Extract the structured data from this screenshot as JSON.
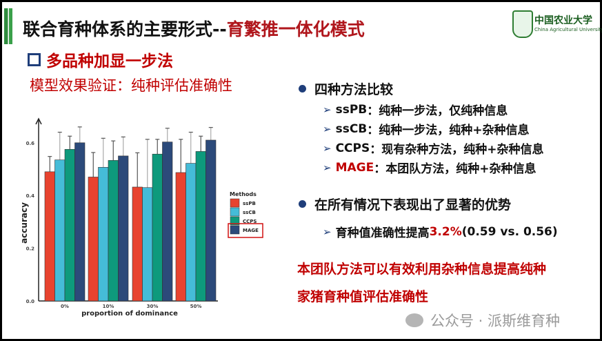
{
  "slide": {
    "title_main": "联合育种体系的主要形式--",
    "title_highlight": "育繁推一体化模式",
    "logo": {
      "cn": "中国农业大学",
      "en": "China Agricultural University"
    },
    "heading": "多品种加显一步法",
    "subtitle": "模型效果验证：纯种评估准确性",
    "bullets": [
      {
        "text": "四种方法比较",
        "items": [
          {
            "key": "ssPB",
            "text": "：纯种一步法，仅纯种信息"
          },
          {
            "key": "ssCB",
            "text": "：纯种一步法，纯种+杂种信息"
          },
          {
            "key": "CCPS",
            "text": "：现有杂种方法，纯种+杂种信息"
          },
          {
            "key": "MAGE",
            "text": "：本团队方法，纯种+杂种信息"
          }
        ]
      },
      {
        "text": "在所有情况下表现出了显著的优势",
        "items": [
          {
            "key": "育种值准确性提高 ",
            "highlight": "3.2%",
            "text": " (0.59 vs. 0.56)"
          }
        ]
      }
    ],
    "conclusion": [
      "本团队方法可以有效利用杂种信息提高纯种",
      "家猪育种值评估准确性"
    ],
    "watermark": "公众号 · 派斯维育种"
  },
  "colors": {
    "accent_red": "#c00000",
    "title_red": "#b0161c",
    "bullet_blue": "#1f3e7a",
    "green": "#2e8b3e"
  },
  "chart_data": {
    "type": "bar",
    "xlabel": "proportion of dominance",
    "ylabel": "accuracy",
    "categories": [
      "0%",
      "10%",
      "30%",
      "50%"
    ],
    "ylim": [
      0,
      0.67
    ],
    "yticks": [
      "0.0",
      "0.2",
      "0.4",
      "0.6"
    ],
    "grid": false,
    "legend_title": "Methods",
    "legend_position": "right",
    "highlighted_series": "MAGE",
    "series": [
      {
        "name": "ssPB",
        "color": "#e8432f",
        "values": [
          0.49,
          0.47,
          0.432,
          0.487
        ],
        "error_upper": [
          0.548,
          0.563,
          0.562,
          0.613
        ]
      },
      {
        "name": "ssCB",
        "color": "#45bcd8",
        "values": [
          0.535,
          0.507,
          0.43,
          0.522
        ],
        "error_upper": [
          0.64,
          0.617,
          0.613,
          0.64
        ]
      },
      {
        "name": "CCPS",
        "color": "#0e9a7c",
        "values": [
          0.575,
          0.533,
          0.557,
          0.567
        ],
        "error_upper": [
          0.625,
          0.607,
          0.613,
          0.625
        ]
      },
      {
        "name": "MAGE",
        "color": "#2c4a7a",
        "values": [
          0.6,
          0.55,
          0.603,
          0.61
        ],
        "error_upper": [
          0.66,
          0.622,
          0.655,
          0.658
        ]
      }
    ]
  }
}
